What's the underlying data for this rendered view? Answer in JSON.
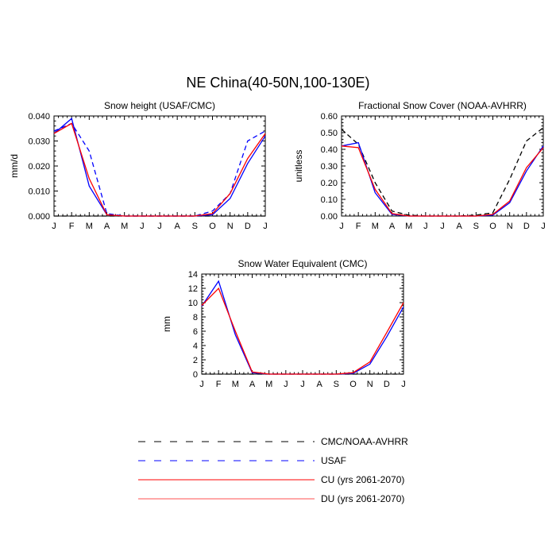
{
  "figure": {
    "title": "NE China(40-50N,100-130E)"
  },
  "colors": {
    "cmc": "#000000",
    "usaf": "#0000ff",
    "cu": "#ff0000",
    "du": "#ff0000",
    "cu_model_panel": "#0000ff"
  },
  "chart_data": [
    {
      "type": "line",
      "title": "Snow height (USAF/CMC)",
      "ylabel": "mm/d",
      "xlabel": "",
      "categories": [
        "J",
        "F",
        "M",
        "A",
        "M",
        "J",
        "J",
        "A",
        "S",
        "O",
        "N",
        "D",
        "J"
      ],
      "ylim": [
        0,
        0.04
      ],
      "yticks": [
        "0.000",
        "0.010",
        "0.020",
        "0.030",
        "0.040"
      ],
      "series": [
        {
          "name": "CMC/NOAA-AVHRR",
          "style": "dashed",
          "color": "#000000",
          "values": [
            0,
            0,
            0,
            0,
            0,
            0,
            0,
            0,
            0,
            0,
            0,
            0,
            0
          ]
        },
        {
          "name": "USAF",
          "style": "dashed",
          "color": "#0000ff",
          "values": [
            0.034,
            0.037,
            0.026,
            0.001,
            0,
            0,
            0,
            0,
            0,
            0.002,
            0.009,
            0.03,
            0.034
          ]
        },
        {
          "name": "CU (yrs 2061-2070)",
          "style": "solid",
          "color": "#0000ff",
          "values": [
            0.033,
            0.039,
            0.012,
            0.0005,
            0,
            0,
            0,
            0,
            0,
            0.0005,
            0.007,
            0.021,
            0.032
          ]
        },
        {
          "name": "DU (yrs 2061-2070)",
          "style": "solid",
          "color": "#ff0000",
          "values": [
            0.033,
            0.037,
            0.015,
            0.0005,
            0,
            0,
            0,
            0,
            0,
            0.001,
            0.009,
            0.023,
            0.033
          ]
        }
      ]
    },
    {
      "type": "line",
      "title": "Fractional Snow Cover (NOAA-AVHRR)",
      "ylabel": "unitless",
      "xlabel": "",
      "categories": [
        "J",
        "F",
        "M",
        "A",
        "M",
        "J",
        "J",
        "A",
        "S",
        "O",
        "N",
        "D",
        "J"
      ],
      "ylim": [
        0,
        0.6
      ],
      "yticks": [
        "0.00",
        "0.10",
        "0.20",
        "0.30",
        "0.40",
        "0.50",
        "0.60"
      ],
      "series": [
        {
          "name": "CMC/NOAA-AVHRR",
          "style": "dashed",
          "color": "#000000",
          "values": [
            0.52,
            0.43,
            0.2,
            0.03,
            0.005,
            0,
            0,
            0,
            0.005,
            0.02,
            0.22,
            0.45,
            0.53
          ]
        },
        {
          "name": "CU (yrs 2061-2070)",
          "style": "solid",
          "color": "#0000ff",
          "values": [
            0.42,
            0.44,
            0.14,
            0.01,
            0,
            0,
            0,
            0,
            0,
            0.005,
            0.08,
            0.27,
            0.42
          ]
        },
        {
          "name": "DU (yrs 2061-2070)",
          "style": "solid",
          "color": "#ff0000",
          "values": [
            0.42,
            0.41,
            0.16,
            0.015,
            0,
            0,
            0,
            0,
            0,
            0.01,
            0.09,
            0.29,
            0.41
          ]
        }
      ]
    },
    {
      "type": "line",
      "title": "Snow Water Equivalent (CMC)",
      "ylabel": "mm",
      "xlabel": "",
      "categories": [
        "J",
        "F",
        "M",
        "A",
        "M",
        "J",
        "J",
        "A",
        "S",
        "O",
        "N",
        "D",
        "J"
      ],
      "ylim": [
        0,
        14
      ],
      "yticks": [
        "0",
        "2",
        "4",
        "6",
        "8",
        "10",
        "12",
        "14"
      ],
      "series": [
        {
          "name": "CMC/NOAA-AVHRR",
          "style": "dashed",
          "color": "#000000",
          "values": [
            0,
            0,
            0,
            0,
            0,
            0,
            0,
            0,
            0,
            0,
            0,
            0,
            0
          ]
        },
        {
          "name": "CU (yrs 2061-2070)",
          "style": "solid",
          "color": "#0000ff",
          "values": [
            9.5,
            13.0,
            5.5,
            0.2,
            0,
            0,
            0,
            0,
            0,
            0.1,
            1.4,
            5.2,
            9.4
          ]
        },
        {
          "name": "DU (yrs 2061-2070)",
          "style": "solid",
          "color": "#ff0000",
          "values": [
            9.6,
            12.0,
            6.0,
            0.3,
            0,
            0,
            0,
            0,
            0,
            0.2,
            1.7,
            5.8,
            10.0
          ]
        }
      ]
    }
  ],
  "legend": {
    "items": [
      {
        "label": "CMC/NOAA-AVHRR",
        "style": "dashed",
        "color": "#000000"
      },
      {
        "label": "USAF",
        "style": "dashed",
        "color": "#0000ff"
      },
      {
        "label": "CU (yrs 2061-2070)",
        "style": "solid",
        "color": "#ff0000"
      },
      {
        "label": "DU (yrs 2061-2070)",
        "style": "solid",
        "color": "#ff5050"
      }
    ]
  }
}
